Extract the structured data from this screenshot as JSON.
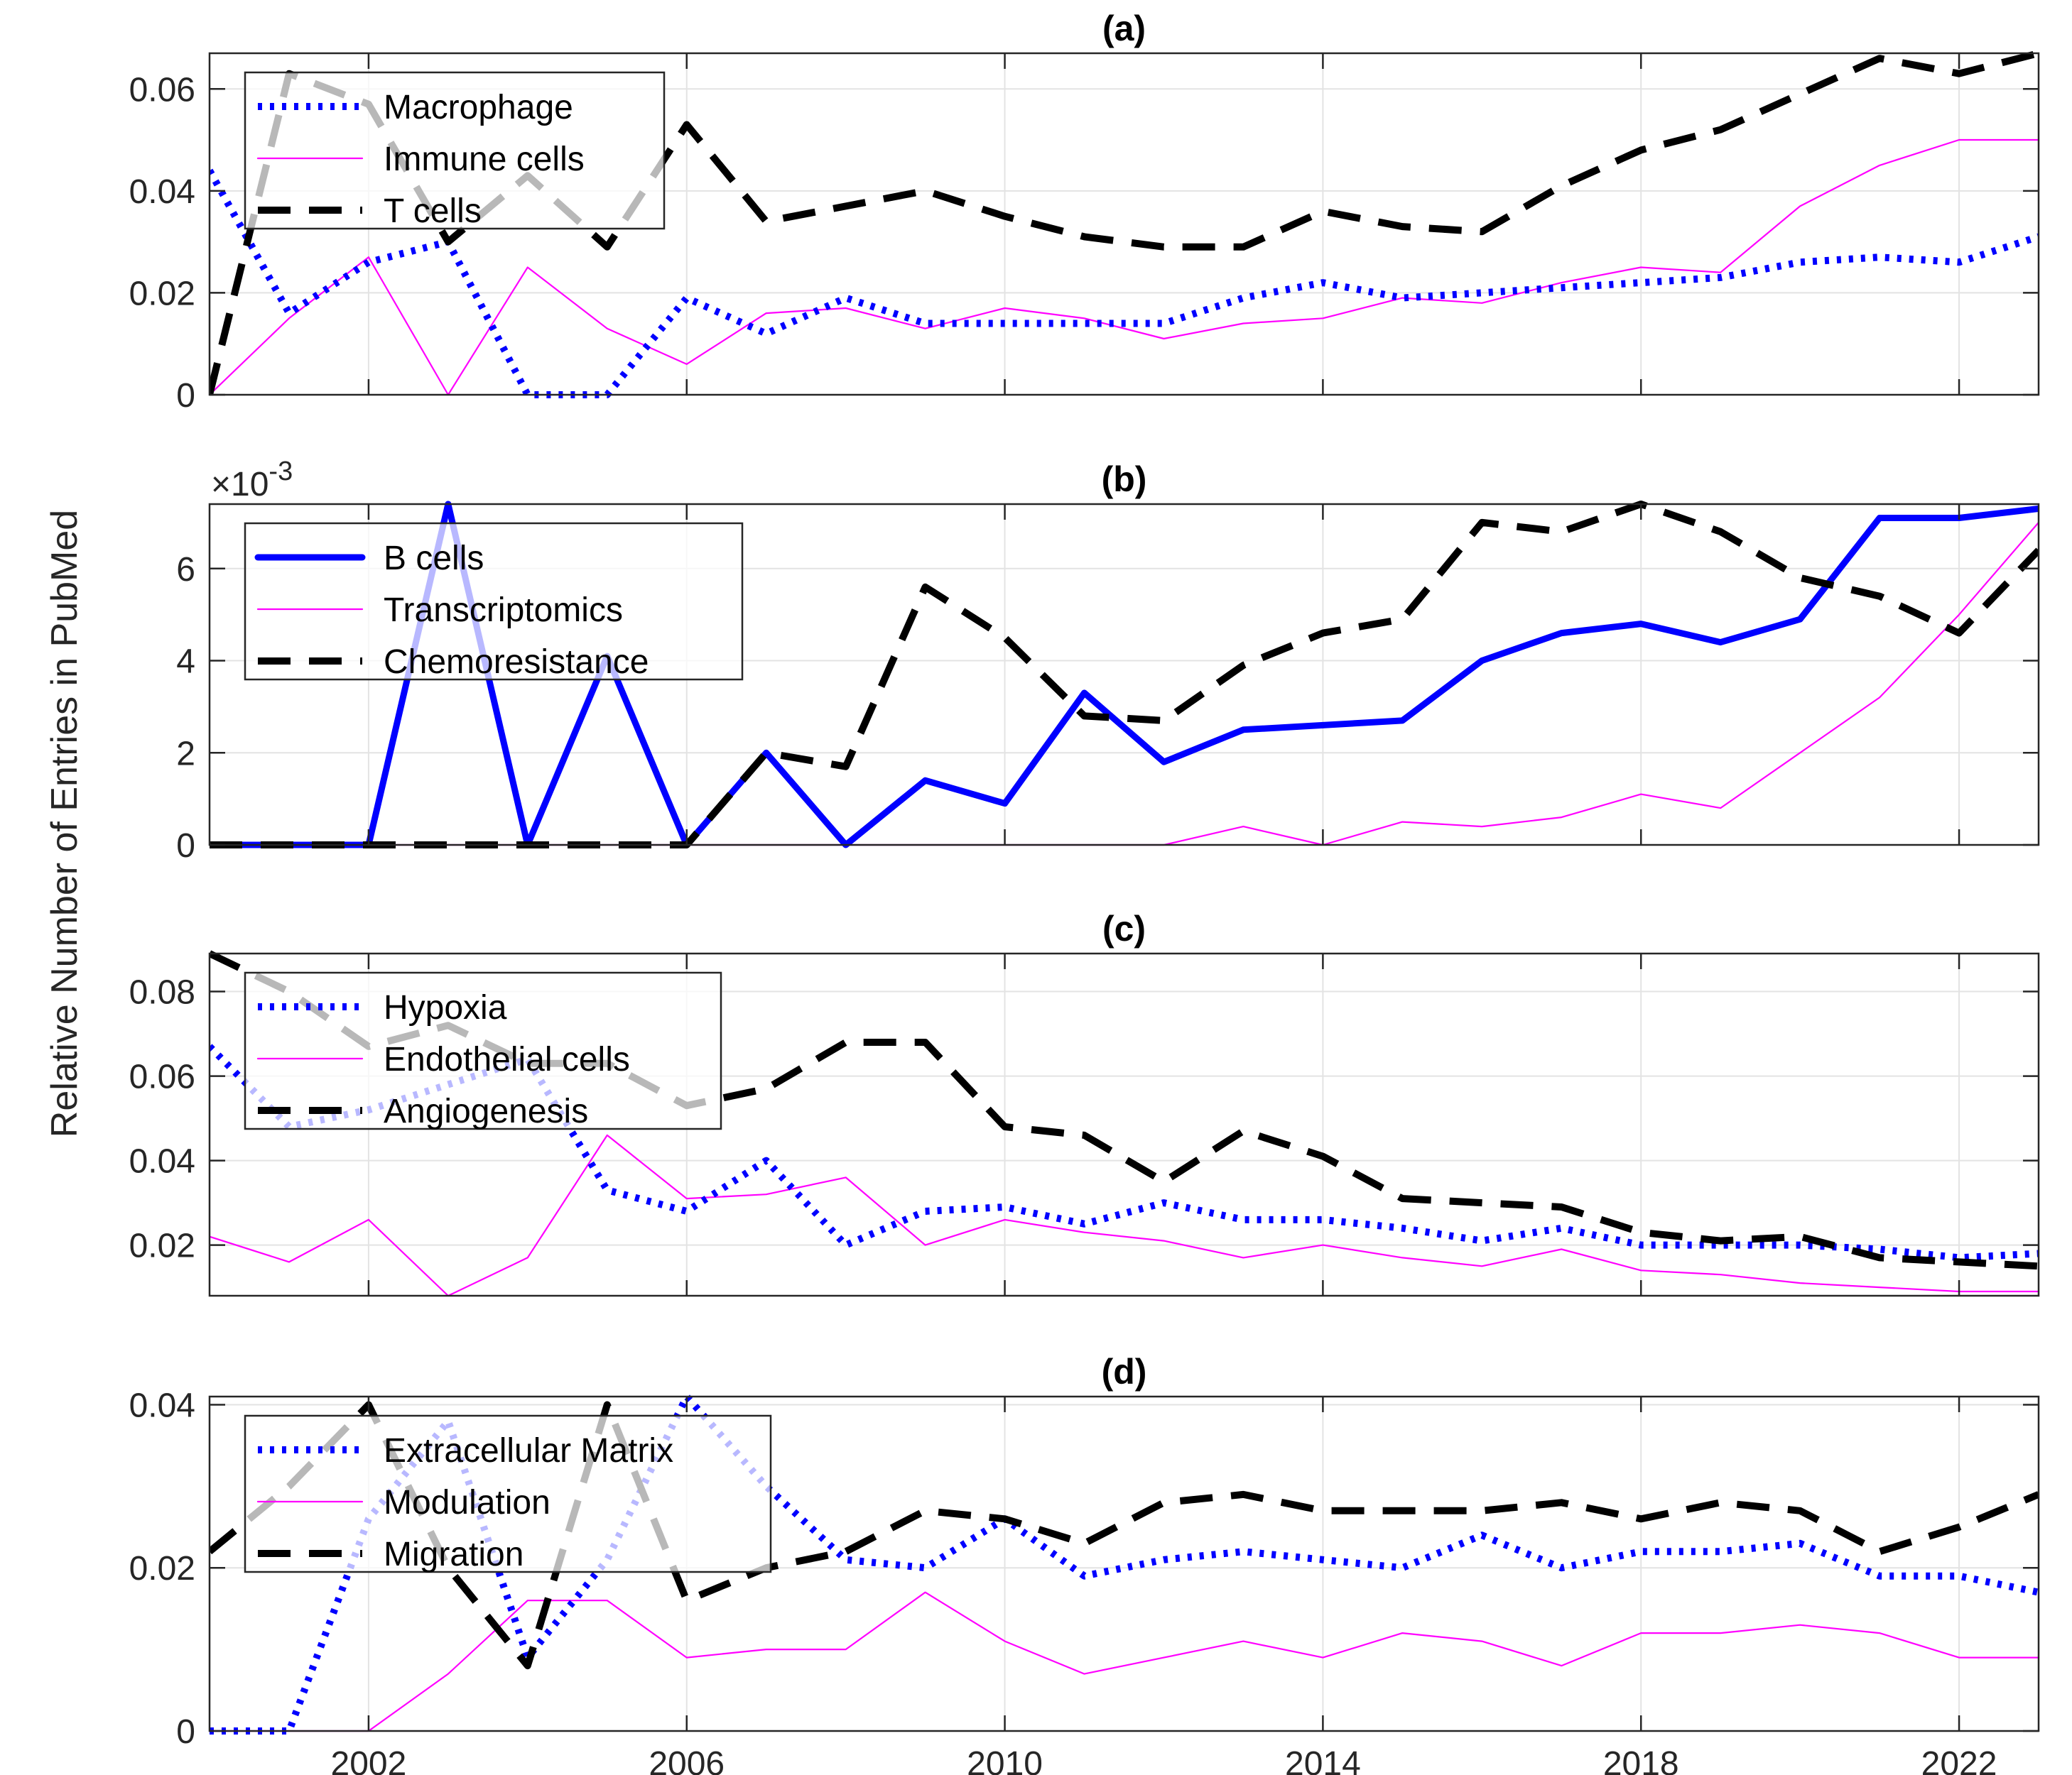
{
  "figure": {
    "ylabel": "Relative Number of Entries in PubMed",
    "xlim": [
      2000,
      2023
    ],
    "xticks": [
      2002,
      2006,
      2010,
      2014,
      2018,
      2022
    ]
  },
  "chart_data": [
    {
      "type": "line",
      "title": "(a)",
      "xlabel": "",
      "ylabel": "",
      "ylim": [
        0,
        0.067
      ],
      "yticks": [
        0,
        0.02,
        0.04,
        0.06
      ],
      "ytick_labels": [
        "0",
        "0.02",
        "0.04",
        "0.06"
      ],
      "exponent": "",
      "grid": true,
      "legend": "top-left",
      "x": [
        2000,
        2001,
        2002,
        2003,
        2004,
        2005,
        2006,
        2007,
        2008,
        2009,
        2010,
        2011,
        2012,
        2013,
        2014,
        2015,
        2016,
        2017,
        2018,
        2019,
        2020,
        2021,
        2022,
        2023
      ],
      "series": [
        {
          "name": "Macrophage",
          "style": "dotted",
          "color": "#0000ff",
          "values": [
            0.044,
            0.016,
            0.026,
            0.03,
            0.0,
            0.0,
            0.019,
            0.012,
            0.019,
            0.014,
            0.014,
            0.014,
            0.014,
            0.019,
            0.022,
            0.019,
            0.02,
            0.021,
            0.022,
            0.023,
            0.026,
            0.027,
            0.026,
            0.031
          ]
        },
        {
          "name": "Immune cells",
          "style": "thin",
          "color": "#ff00ff",
          "values": [
            0.0,
            0.015,
            0.027,
            0.0,
            0.025,
            0.013,
            0.006,
            0.016,
            0.017,
            0.013,
            0.017,
            0.015,
            0.011,
            0.014,
            0.015,
            0.019,
            0.018,
            0.022,
            0.025,
            0.024,
            0.037,
            0.045,
            0.05,
            0.05
          ]
        },
        {
          "name": "T cells",
          "style": "dashed",
          "color": "#000000",
          "values": [
            0.0,
            0.063,
            0.057,
            0.03,
            0.043,
            0.029,
            0.053,
            0.034,
            0.037,
            0.04,
            0.035,
            0.031,
            0.029,
            0.029,
            0.036,
            0.033,
            0.032,
            0.041,
            0.048,
            0.052,
            0.059,
            0.066,
            0.063,
            0.067
          ]
        }
      ],
      "legend_entries": [
        "Macrophage",
        "Immune cells",
        "T cells"
      ]
    },
    {
      "type": "line",
      "title": "(b)",
      "xlabel": "",
      "ylabel": "",
      "ylim": [
        0,
        0.0074
      ],
      "yticks": [
        0,
        0.002,
        0.004,
        0.006
      ],
      "ytick_labels": [
        "0",
        "2",
        "4",
        "6"
      ],
      "exponent": "×10",
      "exponent_power": "-3",
      "grid": true,
      "legend": "top-left",
      "x": [
        2000,
        2001,
        2002,
        2003,
        2004,
        2005,
        2006,
        2007,
        2008,
        2009,
        2010,
        2011,
        2012,
        2013,
        2014,
        2015,
        2016,
        2017,
        2018,
        2019,
        2020,
        2021,
        2022,
        2023
      ],
      "series": [
        {
          "name": "B cells",
          "style": "thick",
          "color": "#0000ff",
          "values": [
            0.0,
            0.0,
            0.0,
            0.0074,
            0.0,
            0.0041,
            0.0,
            0.002,
            0.0,
            0.0014,
            0.0009,
            0.0033,
            0.0018,
            0.0025,
            0.0026,
            0.0027,
            0.004,
            0.0046,
            0.0048,
            0.0044,
            0.0049,
            0.0071,
            0.0071,
            0.0073
          ]
        },
        {
          "name": "Transcriptomics",
          "style": "thin",
          "color": "#ff00ff",
          "values": [
            0.0,
            0.0,
            0.0,
            0.0,
            0.0,
            0.0,
            0.0,
            0.0,
            0.0,
            0.0,
            0.0,
            0.0,
            0.0,
            0.0004,
            0.0,
            0.0005,
            0.0004,
            0.0006,
            0.0011,
            0.0008,
            0.002,
            0.0032,
            0.005,
            0.007
          ]
        },
        {
          "name": "Chemoresistance",
          "style": "dashed",
          "color": "#000000",
          "values": [
            0.0,
            0.0,
            0.0,
            0.0,
            0.0,
            0.0,
            0.0,
            0.002,
            0.0017,
            0.0056,
            0.0045,
            0.0028,
            0.0027,
            0.0039,
            0.0046,
            0.0049,
            0.007,
            0.0068,
            0.0074,
            0.0068,
            0.0058,
            0.0054,
            0.0046,
            0.0064
          ]
        }
      ],
      "legend_entries": [
        "B cells",
        "Transcriptomics",
        "Chemoresistance"
      ]
    },
    {
      "type": "line",
      "title": "(c)",
      "xlabel": "",
      "ylabel": "",
      "ylim": [
        0.008,
        0.089
      ],
      "yticks": [
        0.02,
        0.04,
        0.06,
        0.08
      ],
      "ytick_labels": [
        "0.02",
        "0.04",
        "0.06",
        "0.08"
      ],
      "exponent": "",
      "grid": true,
      "legend": "top-left",
      "x": [
        2000,
        2001,
        2002,
        2003,
        2004,
        2005,
        2006,
        2007,
        2008,
        2009,
        2010,
        2011,
        2012,
        2013,
        2014,
        2015,
        2016,
        2017,
        2018,
        2019,
        2020,
        2021,
        2022,
        2023
      ],
      "series": [
        {
          "name": "Hypoxia",
          "style": "dotted",
          "color": "#0000ff",
          "values": [
            0.067,
            0.048,
            0.052,
            0.058,
            0.064,
            0.033,
            0.028,
            0.04,
            0.02,
            0.028,
            0.029,
            0.025,
            0.03,
            0.026,
            0.026,
            0.024,
            0.021,
            0.024,
            0.02,
            0.02,
            0.02,
            0.019,
            0.017,
            0.018
          ]
        },
        {
          "name": "Endothelial cells",
          "style": "thin",
          "color": "#ff00ff",
          "values": [
            0.022,
            0.016,
            0.026,
            0.008,
            0.017,
            0.046,
            0.031,
            0.032,
            0.036,
            0.02,
            0.026,
            0.023,
            0.021,
            0.017,
            0.02,
            0.017,
            0.015,
            0.019,
            0.014,
            0.013,
            0.011,
            0.01,
            0.009,
            0.009
          ]
        },
        {
          "name": "Angiogenesis",
          "style": "dashed",
          "color": "#000000",
          "values": [
            0.089,
            0.08,
            0.067,
            0.072,
            0.063,
            0.063,
            0.053,
            0.057,
            0.068,
            0.068,
            0.048,
            0.046,
            0.035,
            0.047,
            0.041,
            0.031,
            0.03,
            0.029,
            0.023,
            0.021,
            0.022,
            0.017,
            0.016,
            0.015
          ]
        }
      ],
      "legend_entries": [
        "Hypoxia",
        "Endothelial cells",
        "Angiogenesis"
      ]
    },
    {
      "type": "line",
      "title": "(d)",
      "xlabel": "",
      "ylabel": "",
      "ylim": [
        0,
        0.041
      ],
      "yticks": [
        0,
        0.02,
        0.04
      ],
      "ytick_labels": [
        "0",
        "0.02",
        "0.04"
      ],
      "exponent": "",
      "grid": true,
      "legend": "top-left",
      "x": [
        2000,
        2001,
        2002,
        2003,
        2004,
        2005,
        2006,
        2007,
        2008,
        2009,
        2010,
        2011,
        2012,
        2013,
        2014,
        2015,
        2016,
        2017,
        2018,
        2019,
        2020,
        2021,
        2022,
        2023
      ],
      "series": [
        {
          "name": "Extracellular Matrix",
          "style": "dotted",
          "color": "#0000ff",
          "values": [
            0.0,
            0.0,
            0.026,
            0.038,
            0.009,
            0.021,
            0.041,
            0.03,
            0.021,
            0.02,
            0.026,
            0.019,
            0.021,
            0.022,
            0.021,
            0.02,
            0.024,
            0.02,
            0.022,
            0.022,
            0.023,
            0.019,
            0.019,
            0.017
          ]
        },
        {
          "name": "Modulation",
          "style": "thin",
          "color": "#ff00ff",
          "values": [
            0.0,
            0.0,
            0.0,
            0.007,
            0.016,
            0.016,
            0.009,
            0.01,
            0.01,
            0.017,
            0.011,
            0.007,
            0.009,
            0.011,
            0.009,
            0.012,
            0.011,
            0.008,
            0.012,
            0.012,
            0.013,
            0.012,
            0.009,
            0.009
          ]
        },
        {
          "name": "Migration",
          "style": "dashed",
          "color": "#000000",
          "values": [
            0.022,
            0.03,
            0.04,
            0.02,
            0.008,
            0.04,
            0.016,
            0.02,
            0.022,
            0.027,
            0.026,
            0.023,
            0.028,
            0.029,
            0.027,
            0.027,
            0.027,
            0.028,
            0.026,
            0.028,
            0.027,
            0.022,
            0.025,
            0.029
          ]
        }
      ],
      "legend_entries": [
        "Extracellular Matrix",
        "Modulation",
        "Migration"
      ]
    }
  ]
}
